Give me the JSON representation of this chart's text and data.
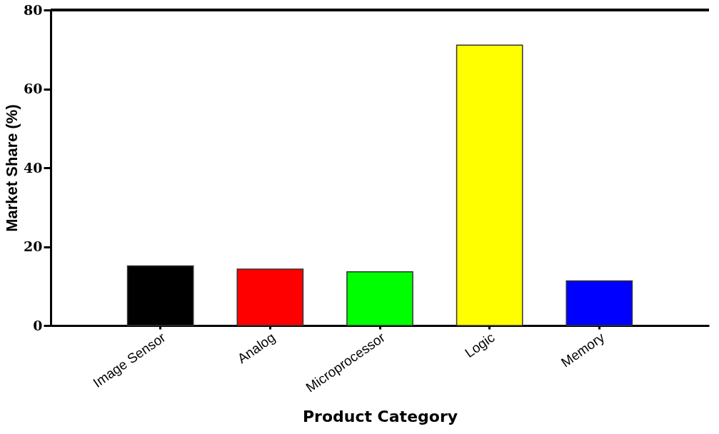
{
  "chart_data": {
    "type": "bar",
    "xlabel": "Product Category",
    "ylabel": "Market Share (%)",
    "categories": [
      "Image Sensor",
      "Analog",
      "Microprocessor",
      "Logic",
      "Memory"
    ],
    "values": [
      15.1,
      14.3,
      13.6,
      71.1,
      11.3
    ],
    "colors": [
      "#000000",
      "#ff0000",
      "#00ff00",
      "#ffff00",
      "#0000ff"
    ],
    "ylim": [
      0,
      80
    ],
    "yticks": [
      0,
      20,
      40,
      60,
      80
    ],
    "grid": false
  }
}
